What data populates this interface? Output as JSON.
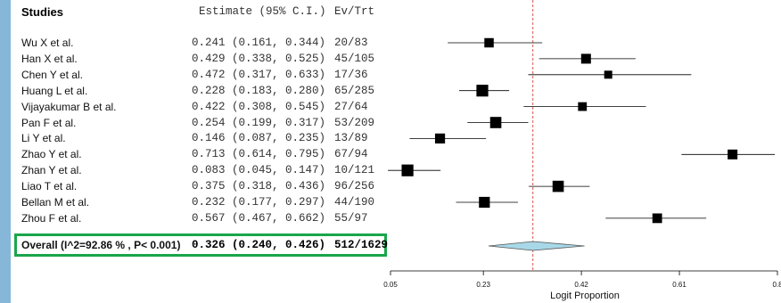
{
  "header": {
    "studies": "Studies",
    "estimate": "Estimate (95% C.I.)",
    "evtrt": "Ev/Trt"
  },
  "studies": [
    {
      "name": "Wu X et al.",
      "estimate": "0.241 (0.161, 0.344)",
      "evtrt": "20/83"
    },
    {
      "name": "Han X et al.",
      "estimate": "0.429 (0.338, 0.525)",
      "evtrt": "45/105"
    },
    {
      "name": "Chen Y et al.",
      "estimate": "0.472 (0.317, 0.633)",
      "evtrt": "17/36"
    },
    {
      "name": "Huang L et al.",
      "estimate": "0.228 (0.183, 0.280)",
      "evtrt": "65/285"
    },
    {
      "name": "Vijayakumar B et al.",
      "estimate": "0.422 (0.308, 0.545)",
      "evtrt": "27/64"
    },
    {
      "name": "Pan F et al.",
      "estimate": "0.254 (0.199, 0.317)",
      "evtrt": "53/209"
    },
    {
      "name": "Li Y et al.",
      "estimate": "0.146 (0.087, 0.235)",
      "evtrt": "13/89"
    },
    {
      "name": "Zhao Y et al.",
      "estimate": "0.713 (0.614, 0.795)",
      "evtrt": "67/94"
    },
    {
      "name": "Zhan Y et al.",
      "estimate": "0.083 (0.045, 0.147)",
      "evtrt": "10/121"
    },
    {
      "name": "Liao T et al.",
      "estimate": "0.375 (0.318, 0.436)",
      "evtrt": "96/256"
    },
    {
      "name": "Bellan M et al.",
      "estimate": "0.232 (0.177, 0.297)",
      "evtrt": "44/190"
    },
    {
      "name": "Zhou F et al.",
      "estimate": "0.567 (0.467, 0.662)",
      "evtrt": "55/97"
    }
  ],
  "overall": {
    "label": "Overall (I^2=92.86 % , P< 0.001)",
    "estimate": "0.326 (0.240, 0.426)",
    "evtrt": "512/1629"
  },
  "colors": {
    "box_highlight": "#1aa64a",
    "diamond_fill": "#a8d8e8",
    "reference_line": "#d9534f",
    "sidebar": "#86b7d9"
  },
  "chart_data": {
    "type": "forest",
    "xlabel": "Logit Proportion",
    "xticks": [
      0.05,
      0.23,
      0.42,
      0.61,
      0.8
    ],
    "xlim": [
      0.05,
      0.8
    ],
    "reference_value": 0.326,
    "series": [
      {
        "name": "Wu X et al.",
        "est": 0.241,
        "lo": 0.161,
        "hi": 0.344,
        "weight": 0.45
      },
      {
        "name": "Han X et al.",
        "est": 0.429,
        "lo": 0.338,
        "hi": 0.525,
        "weight": 0.5
      },
      {
        "name": "Chen Y et al.",
        "est": 0.472,
        "lo": 0.317,
        "hi": 0.633,
        "weight": 0.3
      },
      {
        "name": "Huang L et al.",
        "est": 0.228,
        "lo": 0.183,
        "hi": 0.28,
        "weight": 0.72
      },
      {
        "name": "Vijayakumar B et al.",
        "est": 0.422,
        "lo": 0.308,
        "hi": 0.545,
        "weight": 0.38
      },
      {
        "name": "Pan F et al.",
        "est": 0.254,
        "lo": 0.199,
        "hi": 0.317,
        "weight": 0.66
      },
      {
        "name": "Li Y et al.",
        "est": 0.146,
        "lo": 0.087,
        "hi": 0.235,
        "weight": 0.52
      },
      {
        "name": "Zhao Y et al.",
        "est": 0.713,
        "lo": 0.614,
        "hi": 0.795,
        "weight": 0.5
      },
      {
        "name": "Zhan Y et al.",
        "est": 0.083,
        "lo": 0.045,
        "hi": 0.147,
        "weight": 0.72
      },
      {
        "name": "Liao T et al.",
        "est": 0.375,
        "lo": 0.318,
        "hi": 0.436,
        "weight": 0.66
      },
      {
        "name": "Bellan M et al.",
        "est": 0.232,
        "lo": 0.177,
        "hi": 0.297,
        "weight": 0.62
      },
      {
        "name": "Zhou F et al.",
        "est": 0.567,
        "lo": 0.467,
        "hi": 0.662,
        "weight": 0.48
      }
    ],
    "overall": {
      "est": 0.326,
      "lo": 0.24,
      "hi": 0.426
    }
  }
}
